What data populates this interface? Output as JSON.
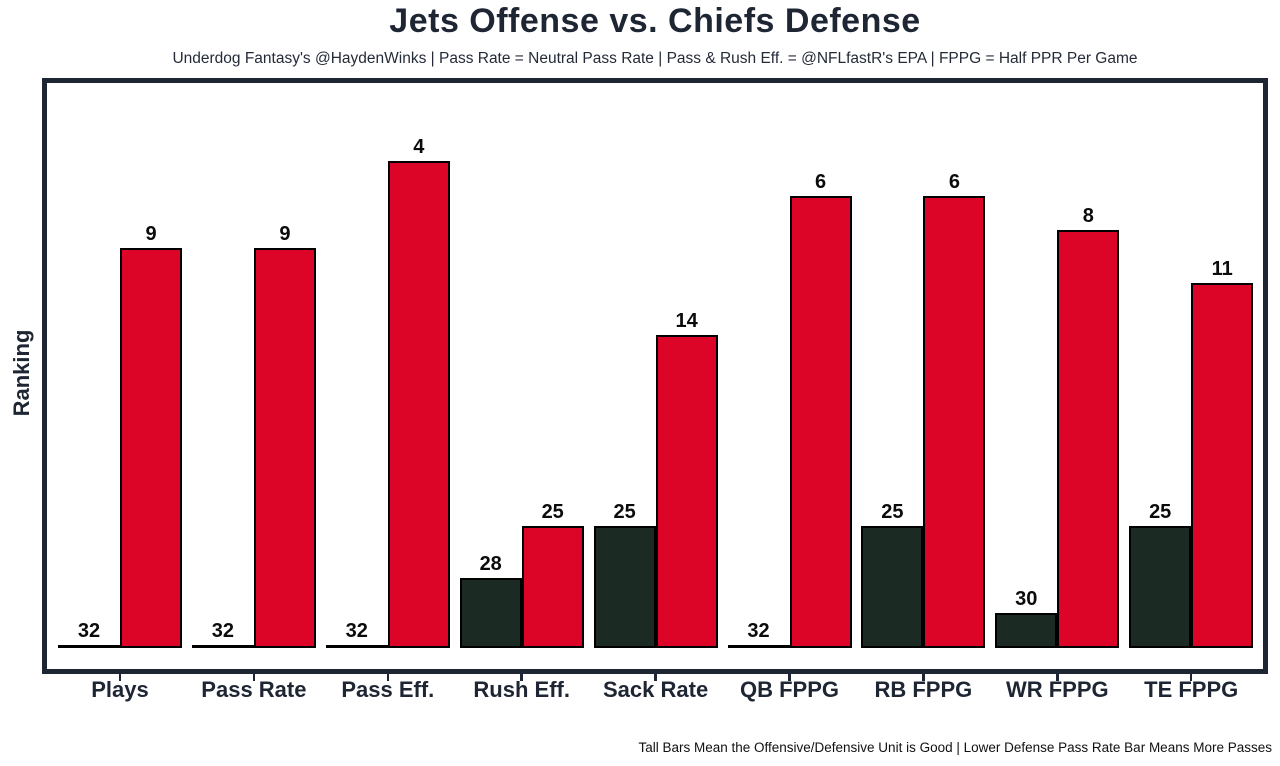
{
  "header": {
    "title": "Jets Offense vs. Chiefs Defense",
    "subtitle": "Underdog Fantasy's @HaydenWinks | Pass Rate = Neutral Pass Rate | Pass & Rush Eff. = @NFLfastR's EPA | FPPG = Half PPR Per Game"
  },
  "footnote": "Tall Bars Mean the Offensive/Defensive Unit is Good | Lower Defense Pass Rate Bar Means More Passes",
  "chart_data": {
    "type": "bar",
    "grouping": "grouped",
    "title": "Jets Offense vs. Chiefs Defense",
    "xlabel": "",
    "ylabel": "Ranking",
    "categories": [
      "Plays",
      "Pass Rate",
      "Pass Eff.",
      "Rush Eff.",
      "Sack Rate",
      "QB FPPG",
      "RB FPPG",
      "WR FPPG",
      "TE FPPG"
    ],
    "series": [
      {
        "name": "Jets Offense",
        "color": "#1b2a23",
        "values": [
          32,
          32,
          32,
          28,
          25,
          32,
          25,
          30,
          25
        ]
      },
      {
        "name": "Chiefs Defense",
        "color": "#dc0427",
        "values": [
          9,
          9,
          4,
          25,
          14,
          6,
          6,
          8,
          11
        ]
      }
    ],
    "value_range": [
      1,
      32
    ],
    "bar_height_rule": "height proportional to (32 - rank); rank 32 renders as a flat line",
    "bar_labels": true,
    "legend": "none",
    "grid": false,
    "y_tick_labels": "none"
  },
  "colors": {
    "background": "#ffffff",
    "panel_border": "#1e2533",
    "heading_text": "#1e2533",
    "bar_outline": "#000000",
    "value_label_text": "#0b0b0b",
    "offense_bar": "#1b2a23",
    "defense_bar": "#dc0427"
  }
}
